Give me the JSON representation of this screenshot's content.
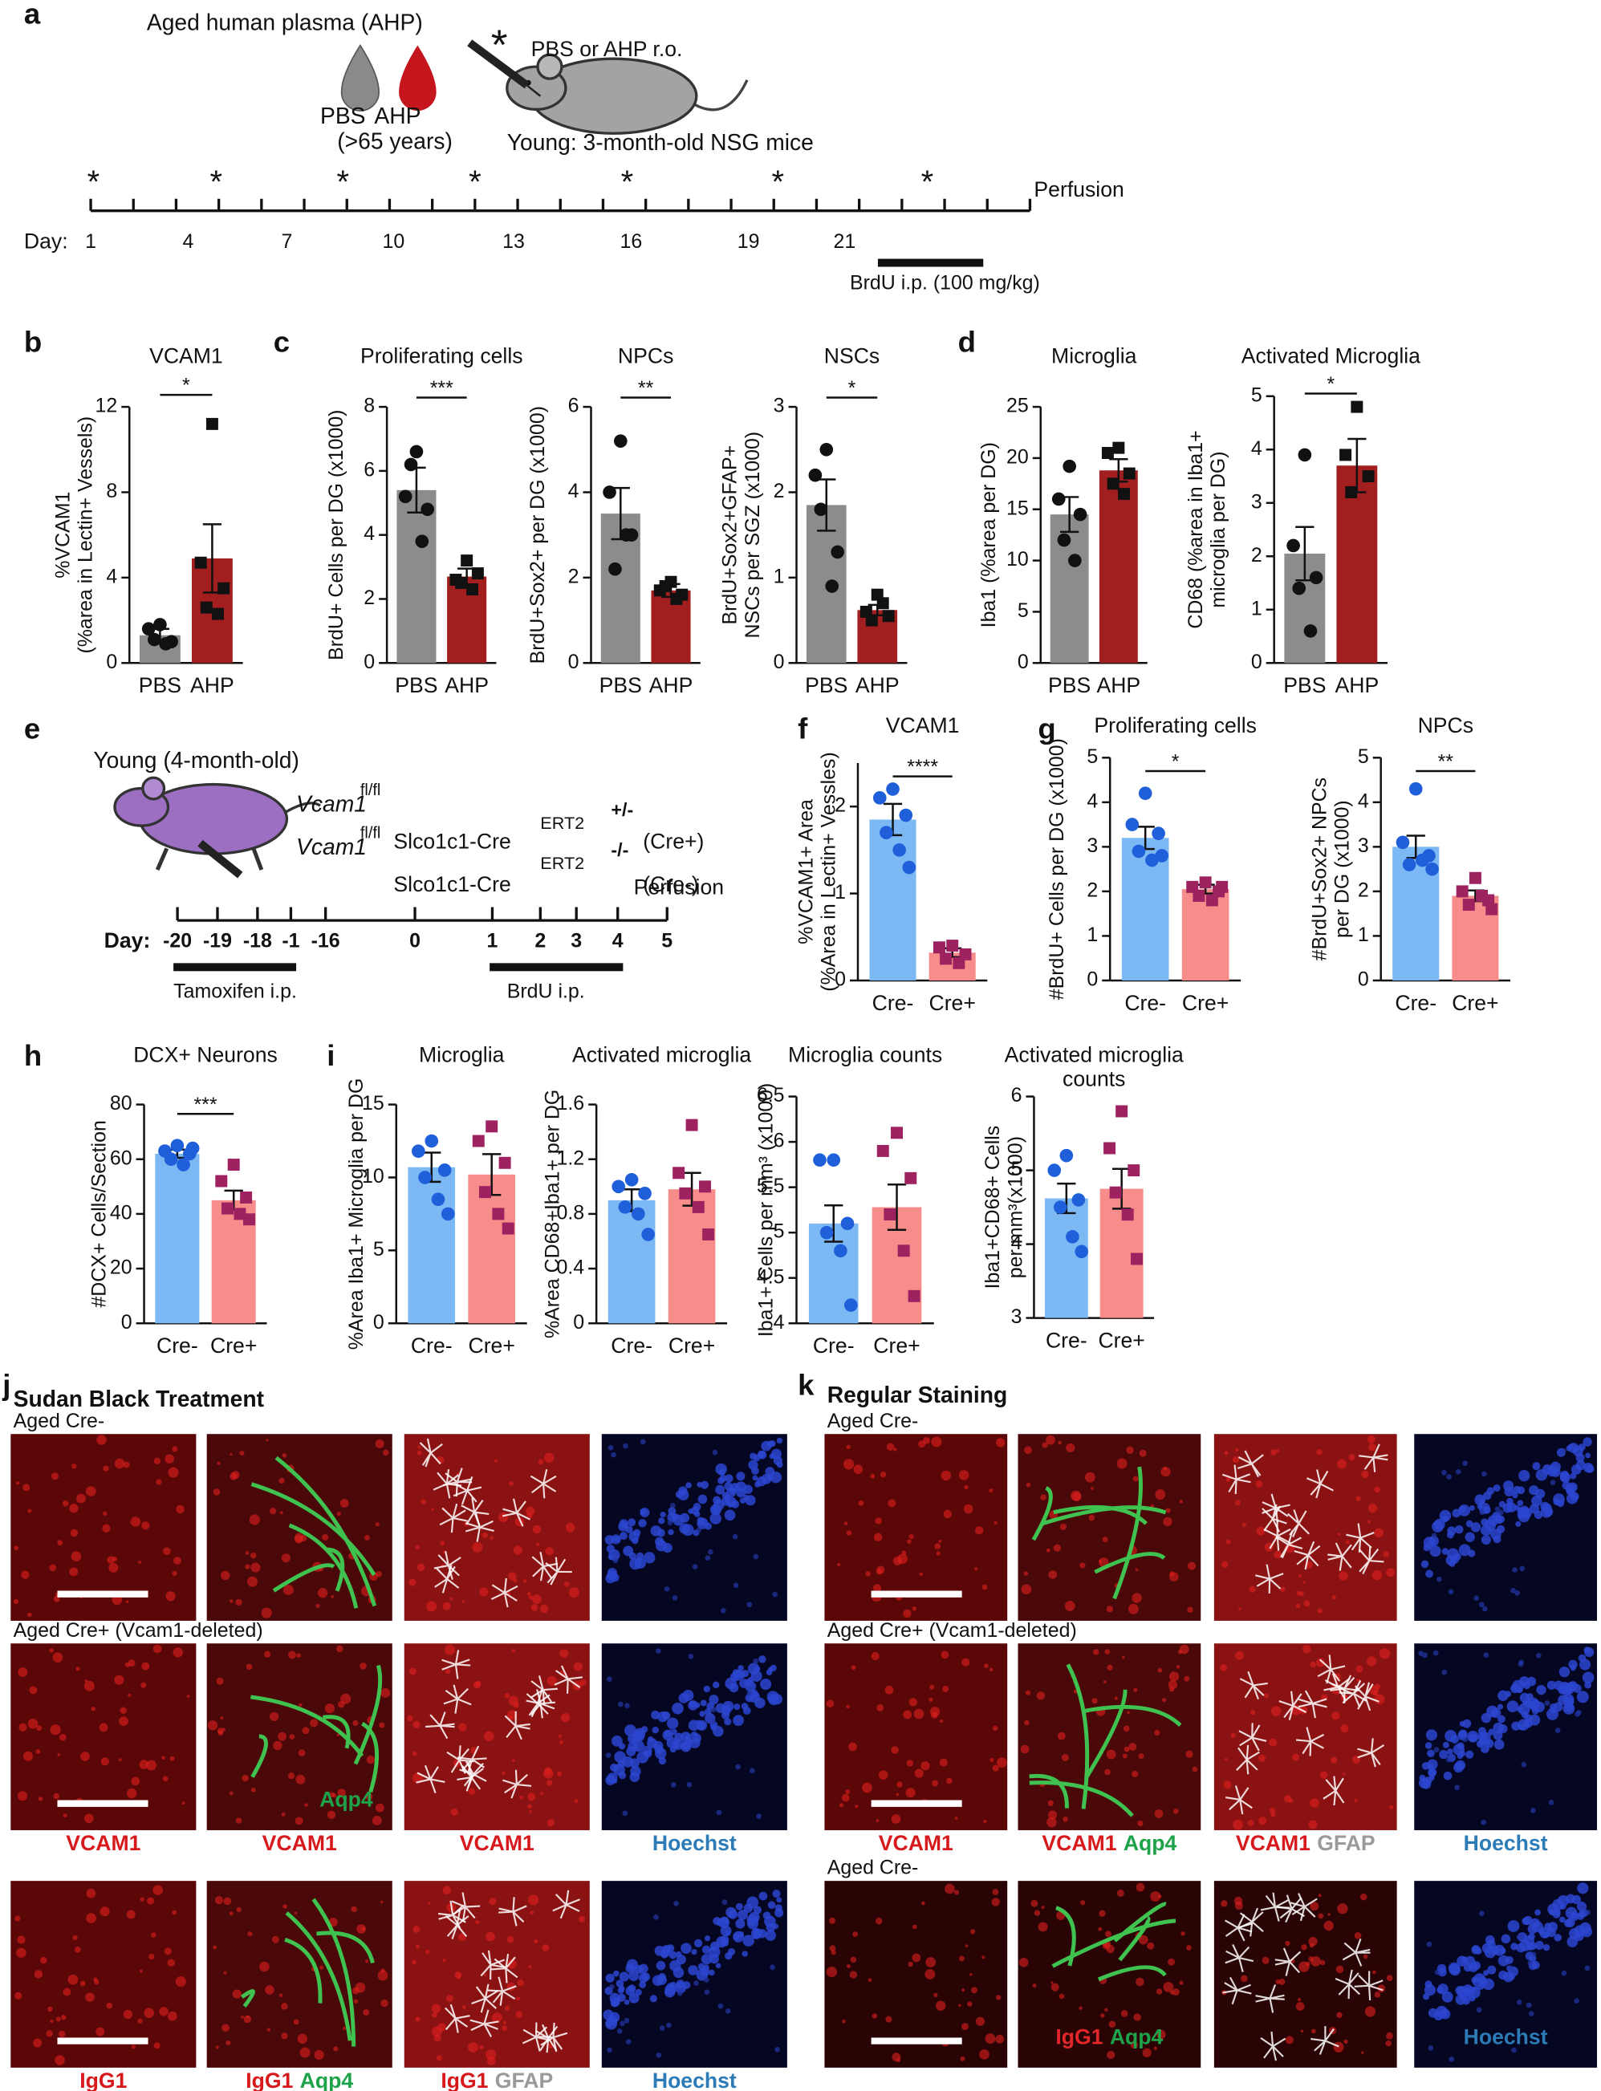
{
  "panel_labels": [
    "a",
    "b",
    "c",
    "d",
    "e",
    "f",
    "g",
    "h",
    "i",
    "j",
    "k"
  ],
  "panel_a": {
    "plasma_title": "Aged human plasma (AHP)",
    "drop_labels": [
      "PBS",
      "AHP"
    ],
    "age": "(>65 years)",
    "injection_marker": "*",
    "injection": "PBS or AHP r.o.",
    "mice": "Young: 3-month-old NSG mice",
    "end": "Perfusion",
    "day_label": "Day:",
    "days": [
      "1",
      "4",
      "7",
      "10",
      "13",
      "16",
      "19",
      "21"
    ],
    "brdu": "BrdU i.p. (100 mg/kg)"
  },
  "panel_e": {
    "mice": "Young (4-month-old)",
    "genotypes": [
      {
        "gene": "Vcam1",
        "gene_sup": "fl/fl",
        "driver": "Slco1c1-Cre",
        "driver_sup": "ERT2",
        "allele": "+/-",
        "group": "(Cre+)"
      },
      {
        "gene": "Vcam1",
        "gene_sup": "fl/fl",
        "driver": "Slco1c1-Cre",
        "driver_sup": "ERT2",
        "allele": "-/-",
        "group": "(Cre-)"
      }
    ],
    "end": "Perfusion",
    "day_label": "Day:",
    "days": [
      "-20",
      "-19",
      "-18",
      "-1",
      "-16",
      "0",
      "1",
      "2",
      "3",
      "4",
      "5"
    ],
    "tamoxifen": "Tamoxifen i.p.",
    "brdu": "BrdU i.p."
  },
  "chart_data": [
    {
      "type": "bar",
      "title": "VCAM1",
      "ylabel": [
        "%VCAM1",
        "(%area in Lectin+ Vessels)"
      ],
      "categories": [
        "PBS",
        "AHP"
      ],
      "values": [
        1.3,
        4.9
      ],
      "errors": [
        0.3,
        1.6
      ],
      "points": [
        [
          1.8,
          1.6,
          1.0,
          1.1,
          0.9
        ],
        [
          11.2,
          4.7,
          3.5,
          2.6,
          2.3
        ]
      ],
      "bar_colors": [
        "#8c8c8c",
        "#a31f1f"
      ],
      "point_colors": [
        "#111111",
        "#111111"
      ],
      "markers": [
        "circle",
        "square"
      ],
      "significance": "*",
      "ylim": [
        0,
        12
      ],
      "yticks": [
        0,
        4,
        8,
        12
      ]
    },
    {
      "type": "bar",
      "title": "Proliferating cells",
      "ylabel": [
        "BrdU+ Cells per DG (x1000)"
      ],
      "categories": [
        "PBS",
        "AHP"
      ],
      "values": [
        5.4,
        2.7
      ],
      "errors": [
        0.7,
        0.25
      ],
      "points": [
        [
          6.6,
          5.2,
          4.8,
          6.2,
          3.8
        ],
        [
          3.2,
          2.6,
          2.8,
          2.5,
          2.3
        ]
      ],
      "bar_colors": [
        "#8c8c8c",
        "#a31f1f"
      ],
      "point_colors": [
        "#111111",
        "#111111"
      ],
      "markers": [
        "circle",
        "square"
      ],
      "significance": "***",
      "ylim": [
        0,
        8
      ],
      "yticks": [
        0,
        2,
        4,
        6,
        8
      ]
    },
    {
      "type": "bar",
      "title": "NPCs",
      "ylabel": [
        "BrdU+Sox2+ per DG (x1000)"
      ],
      "categories": [
        "PBS",
        "AHP"
      ],
      "values": [
        3.5,
        1.7
      ],
      "errors": [
        0.6,
        0.15
      ],
      "points": [
        [
          5.2,
          4.0,
          3.0,
          2.2,
          3.0
        ],
        [
          1.9,
          1.7,
          1.6,
          1.8,
          1.5
        ]
      ],
      "bar_colors": [
        "#8c8c8c",
        "#a31f1f"
      ],
      "point_colors": [
        "#111111",
        "#111111"
      ],
      "markers": [
        "circle",
        "square"
      ],
      "significance": "**",
      "ylim": [
        0,
        6
      ],
      "yticks": [
        0,
        2,
        4,
        6
      ]
    },
    {
      "type": "bar",
      "title": "NSCs",
      "ylabel": [
        "BrdU+Sox2+GFAP+",
        "NSCs per SGZ (x1000)"
      ],
      "categories": [
        "PBS",
        "AHP"
      ],
      "values": [
        1.85,
        0.62
      ],
      "errors": [
        0.3,
        0.06
      ],
      "points": [
        [
          2.5,
          2.2,
          1.3,
          1.8,
          0.9
        ],
        [
          0.8,
          0.6,
          0.55,
          0.5,
          0.7
        ]
      ],
      "bar_colors": [
        "#8c8c8c",
        "#a31f1f"
      ],
      "point_colors": [
        "#111111",
        "#111111"
      ],
      "markers": [
        "circle",
        "square"
      ],
      "significance": "*",
      "ylim": [
        0,
        3
      ],
      "yticks": [
        0,
        1,
        2,
        3
      ]
    },
    {
      "type": "bar",
      "title": "Microglia",
      "ylabel": [
        "Iba1 (%area per DG)"
      ],
      "categories": [
        "PBS",
        "AHP"
      ],
      "values": [
        14.5,
        18.8
      ],
      "errors": [
        1.7,
        1.1
      ],
      "points": [
        [
          19.2,
          16.0,
          14.5,
          12.0,
          10.0
        ],
        [
          21.0,
          20.5,
          18.5,
          17.5,
          16.5
        ]
      ],
      "bar_colors": [
        "#8c8c8c",
        "#a31f1f"
      ],
      "point_colors": [
        "#111111",
        "#111111"
      ],
      "markers": [
        "circle",
        "square"
      ],
      "ylim": [
        0,
        25
      ],
      "yticks": [
        0,
        5,
        10,
        15,
        20,
        25
      ]
    },
    {
      "type": "bar",
      "title": "Activated Microglia",
      "ylabel": [
        "CD68 (%area in Iba1+",
        "microglia per DG)"
      ],
      "categories": [
        "PBS",
        "AHP"
      ],
      "values": [
        2.05,
        3.7
      ],
      "errors": [
        0.5,
        0.5
      ],
      "points": [
        [
          3.9,
          2.2,
          1.6,
          1.4,
          0.6
        ],
        [
          4.8,
          3.9,
          3.5,
          3.2
        ]
      ],
      "bar_colors": [
        "#8c8c8c",
        "#a31f1f"
      ],
      "point_colors": [
        "#111111",
        "#111111"
      ],
      "markers": [
        "circle",
        "square"
      ],
      "significance": "*",
      "ylim": [
        0,
        5
      ],
      "yticks": [
        0,
        1,
        2,
        3,
        4,
        5
      ]
    },
    {
      "type": "bar",
      "title": "VCAM1",
      "ylabel": [
        "%VCAM1+ Area",
        "(%Area in Lectin+ Vessles)"
      ],
      "categories": [
        "Cre-",
        "Cre+"
      ],
      "values": [
        1.85,
        0.32
      ],
      "errors": [
        0.18,
        0.05
      ],
      "points": [
        [
          2.2,
          2.1,
          1.9,
          1.7,
          1.5,
          1.3
        ],
        [
          0.4,
          0.38,
          0.3,
          0.25,
          0.2
        ]
      ],
      "bar_colors": [
        "#7cb8f4",
        "#f68d8a"
      ],
      "point_colors": [
        "#1f5fd9",
        "#9e2160"
      ],
      "markers": [
        "circle",
        "square"
      ],
      "significance": "****",
      "ylim": [
        0,
        2.5
      ],
      "yticks": [
        0,
        1,
        2
      ]
    },
    {
      "type": "bar",
      "title": "Proliferating cells",
      "ylabel": [
        "#BrdU+ Cells per DG (x1000)"
      ],
      "categories": [
        "Cre-",
        "Cre+"
      ],
      "values": [
        3.2,
        2.05
      ],
      "errors": [
        0.25,
        0.1
      ],
      "points": [
        [
          4.2,
          3.5,
          3.3,
          2.9,
          2.7,
          2.8
        ],
        [
          2.2,
          2.1,
          2.0,
          1.9,
          1.8,
          2.1
        ]
      ],
      "bar_colors": [
        "#7cb8f4",
        "#f68d8a"
      ],
      "point_colors": [
        "#1f5fd9",
        "#9e2160"
      ],
      "markers": [
        "circle",
        "square"
      ],
      "significance": "*",
      "ylim": [
        0,
        5
      ],
      "yticks": [
        0,
        1,
        2,
        3,
        4,
        5
      ]
    },
    {
      "type": "bar",
      "title": "NPCs",
      "ylabel": [
        "#BrdU+Sox2+ NPCs",
        "per DG (x1000)"
      ],
      "categories": [
        "Cre-",
        "Cre+"
      ],
      "values": [
        3.0,
        1.9
      ],
      "errors": [
        0.25,
        0.12
      ],
      "points": [
        [
          4.3,
          3.1,
          2.8,
          2.6,
          2.7,
          2.5
        ],
        [
          2.3,
          2.0,
          1.8,
          1.7,
          1.9,
          1.6
        ]
      ],
      "bar_colors": [
        "#7cb8f4",
        "#f68d8a"
      ],
      "point_colors": [
        "#1f5fd9",
        "#9e2160"
      ],
      "markers": [
        "circle",
        "square"
      ],
      "significance": "**",
      "ylim": [
        0,
        5
      ],
      "yticks": [
        0,
        1,
        2,
        3,
        4,
        5
      ]
    },
    {
      "type": "bar",
      "title": "DCX+ Neurons",
      "ylabel": [
        "#DCX+ Cells/Section"
      ],
      "categories": [
        "Cre-",
        "Cre+"
      ],
      "values": [
        62,
        45
      ],
      "errors": [
        1.5,
        3.5
      ],
      "points": [
        [
          65,
          63,
          62,
          60,
          58,
          64
        ],
        [
          58,
          52,
          46,
          42,
          40,
          38
        ]
      ],
      "bar_colors": [
        "#7cb8f4",
        "#f68d8a"
      ],
      "point_colors": [
        "#1f5fd9",
        "#9e2160"
      ],
      "markers": [
        "circle",
        "square"
      ],
      "significance": "***",
      "ylim": [
        0,
        80
      ],
      "yticks": [
        0,
        20,
        40,
        60,
        80
      ]
    },
    {
      "type": "bar",
      "title": "Microglia",
      "ylabel": [
        "%Area Iba1+ Microglia per DG"
      ],
      "categories": [
        "Cre-",
        "Cre+"
      ],
      "values": [
        10.7,
        10.2
      ],
      "errors": [
        1.0,
        1.4
      ],
      "points": [
        [
          12.5,
          11.8,
          10.5,
          10.0,
          8.5,
          7.5
        ],
        [
          13.5,
          12.5,
          11.0,
          9.0,
          7.5,
          6.5
        ]
      ],
      "bar_colors": [
        "#7cb8f4",
        "#f68d8a"
      ],
      "point_colors": [
        "#1f5fd9",
        "#9e2160"
      ],
      "markers": [
        "circle",
        "square"
      ],
      "ylim": [
        0,
        15
      ],
      "yticks": [
        0,
        5,
        10,
        15
      ]
    },
    {
      "type": "bar",
      "title": "Activated microglia",
      "ylabel": [
        "%Area CD68+Iba1+ per DG"
      ],
      "categories": [
        "Cre-",
        "Cre+"
      ],
      "values": [
        0.9,
        0.98
      ],
      "errors": [
        0.08,
        0.12
      ],
      "points": [
        [
          1.05,
          1.0,
          0.95,
          0.85,
          0.8,
          0.65
        ],
        [
          1.45,
          1.1,
          1.0,
          0.95,
          0.85,
          0.65
        ]
      ],
      "bar_colors": [
        "#7cb8f4",
        "#f68d8a"
      ],
      "point_colors": [
        "#1f5fd9",
        "#9e2160"
      ],
      "markers": [
        "circle",
        "square"
      ],
      "ylim": [
        0,
        1.6
      ],
      "yticks": [
        0,
        0.4,
        0.8,
        1.2,
        1.6
      ]
    },
    {
      "type": "bar",
      "title": "Microglia counts",
      "ylabel": [
        "Iba1+ Cells per mm³ (x1000)"
      ],
      "categories": [
        "Cre-",
        "Cre+"
      ],
      "values": [
        5.1,
        5.28
      ],
      "errors": [
        0.2,
        0.25
      ],
      "points": [
        [
          5.8,
          5.8,
          5.1,
          5.0,
          4.8,
          4.2
        ],
        [
          6.1,
          5.9,
          5.6,
          5.2,
          4.8,
          4.3
        ]
      ],
      "bar_colors": [
        "#7cb8f4",
        "#f68d8a"
      ],
      "point_colors": [
        "#1f5fd9",
        "#9e2160"
      ],
      "markers": [
        "circle",
        "square"
      ],
      "ylim": [
        4,
        6.5
      ],
      "yticks": [
        4,
        4.5,
        5,
        5.5,
        6,
        6.5
      ]
    },
    {
      "type": "bar",
      "title": [
        "Activated microglia",
        "counts"
      ],
      "ylabel": [
        "Iba1+CD68+ Cells",
        "per mm³(x1000)"
      ],
      "categories": [
        "Cre-",
        "Cre+"
      ],
      "values": [
        4.62,
        4.75
      ],
      "errors": [
        0.2,
        0.27
      ],
      "points": [
        [
          5.2,
          5.0,
          4.6,
          4.5,
          4.1,
          3.9
        ],
        [
          5.8,
          5.3,
          5.0,
          4.7,
          4.4,
          3.8
        ]
      ],
      "bar_colors": [
        "#7cb8f4",
        "#f68d8a"
      ],
      "point_colors": [
        "#1f5fd9",
        "#9e2160"
      ],
      "markers": [
        "circle",
        "square"
      ],
      "ylim": [
        3,
        6
      ],
      "yticks": [
        3,
        4,
        5,
        6
      ]
    }
  ],
  "panel_j": {
    "title": "Sudan Black Treatment",
    "rows": [
      {
        "label": "Aged Cre-"
      },
      {
        "label": "Aged Cre+ (Vcam1-deleted)",
        "overlays": [
          null,
          [
            {
              "text": "Aqp4",
              "color": "#1fa34a"
            }
          ],
          null,
          null
        ],
        "channels": [
          [
            {
              "text": "VCAM1",
              "color": "#d7191c"
            }
          ],
          [
            {
              "text": "VCAM1",
              "color": "#d7191c"
            }
          ],
          [
            {
              "text": "VCAM1",
              "color": "#d7191c"
            }
          ],
          [
            {
              "text": "Hoechst",
              "color": "#2c7bb6"
            }
          ]
        ]
      },
      {
        "channels": [
          [
            {
              "text": "IgG1",
              "color": "#d7191c"
            }
          ],
          [
            {
              "text": "IgG1",
              "color": "#d7191c"
            },
            {
              "text": "Aqp4",
              "color": "#1fa34a"
            }
          ],
          [
            {
              "text": "IgG1",
              "color": "#d7191c"
            },
            {
              "text": "GFAP",
              "color": "#9a9a9a"
            }
          ],
          [
            {
              "text": "Hoechst",
              "color": "#2c7bb6"
            }
          ]
        ]
      }
    ]
  },
  "panel_k": {
    "title": "Regular Staining",
    "rows": [
      {
        "label": "Aged Cre-"
      },
      {
        "label": "Aged Cre+ (Vcam1-deleted)",
        "channels": [
          [
            {
              "text": "VCAM1",
              "color": "#d7191c"
            }
          ],
          [
            {
              "text": "VCAM1",
              "color": "#d7191c"
            },
            {
              "text": "Aqp4",
              "color": "#1fa34a"
            }
          ],
          [
            {
              "text": "VCAM1",
              "color": "#d7191c"
            },
            {
              "text": "GFAP",
              "color": "#9a9a9a"
            }
          ],
          [
            {
              "text": "Hoechst",
              "color": "#2c7bb6"
            }
          ]
        ]
      },
      {
        "label": "Aged Cre-",
        "overlays": [
          null,
          [
            {
              "text": "IgG1",
              "color": "#e3262a"
            },
            {
              "text": "Aqp4",
              "color": "#1fa34a"
            }
          ],
          null,
          [
            {
              "text": "Hoechst",
              "color": "#2c7bb6"
            }
          ]
        ]
      }
    ]
  }
}
